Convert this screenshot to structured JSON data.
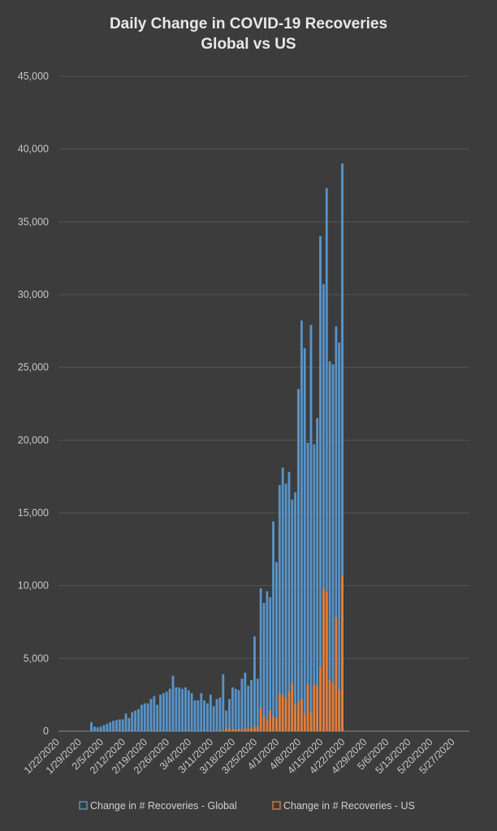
{
  "chart_data": {
    "type": "bar",
    "title": "Daily Change in COVID-19 Recoveries",
    "subtitle": "Global vs US",
    "ylim": [
      0,
      45000
    ],
    "y_ticks": [
      "0",
      "5,000",
      "10,000",
      "15,000",
      "20,000",
      "25,000",
      "30,000",
      "35,000",
      "40,000",
      "45,000"
    ],
    "y_tick_values": [
      0,
      5000,
      10000,
      15000,
      20000,
      25000,
      30000,
      35000,
      40000,
      45000
    ],
    "x_ticks": [
      "1/22/2020",
      "1/29/2020",
      "2/5/2020",
      "2/12/2020",
      "2/19/2020",
      "2/26/2020",
      "3/4/2020",
      "3/11/2020",
      "3/18/2020",
      "3/25/2020",
      "4/1/2020",
      "4/8/2020",
      "4/15/2020",
      "4/22/2020",
      "4/29/2020",
      "5/6/2020",
      "5/13/2020",
      "5/20/2020",
      "5/27/2020"
    ],
    "grid": true,
    "legend": "bottom",
    "dates_start": "1/22/2020",
    "dates_end": "5/31/2020",
    "series": [
      {
        "name": "Change in # Recoveries - Global",
        "color": "#5b9bd5",
        "start_date": "2/1/2020",
        "values": [
          600,
          300,
          250,
          300,
          400,
          500,
          600,
          700,
          750,
          800,
          800,
          1200,
          900,
          1300,
          1400,
          1500,
          1800,
          1900,
          1900,
          2200,
          2400,
          1800,
          2500,
          2600,
          2700,
          2900,
          3800,
          3000,
          3000,
          2900,
          3000,
          2800,
          2600,
          2100,
          2100,
          2600,
          2100,
          1900,
          2500,
          1700,
          2200,
          2300,
          3900,
          1400,
          2200,
          3000,
          2900,
          2800,
          3600,
          4000,
          3100,
          3500,
          6500,
          3600,
          9800,
          8800,
          9600,
          9200,
          14400,
          11600,
          16900,
          18100,
          17000,
          17800,
          15900,
          16400,
          23500,
          28200,
          26300,
          19800,
          27900,
          19700,
          21500,
          34000,
          30700,
          37300,
          25400,
          25200,
          27800,
          26700,
          39000
        ]
      },
      {
        "name": "Change in # Recoveries - US",
        "color": "#ed7d31",
        "start_date": "2/1/2020",
        "values": [
          0,
          0,
          0,
          0,
          0,
          0,
          0,
          0,
          0,
          0,
          0,
          0,
          0,
          0,
          0,
          0,
          0,
          0,
          0,
          0,
          0,
          0,
          0,
          0,
          0,
          0,
          0,
          0,
          0,
          0,
          0,
          0,
          0,
          0,
          0,
          0,
          0,
          0,
          0,
          0,
          0,
          100,
          0,
          150,
          200,
          120,
          100,
          150,
          100,
          200,
          150,
          200,
          300,
          300,
          1600,
          1000,
          700,
          1400,
          1000,
          900,
          2600,
          2500,
          2300,
          2700,
          3300,
          1800,
          2000,
          2200,
          1200,
          3200,
          1300,
          3200,
          3100,
          4400,
          9800,
          9500,
          3500,
          3300,
          7800,
          2800,
          10700
        ]
      }
    ]
  }
}
